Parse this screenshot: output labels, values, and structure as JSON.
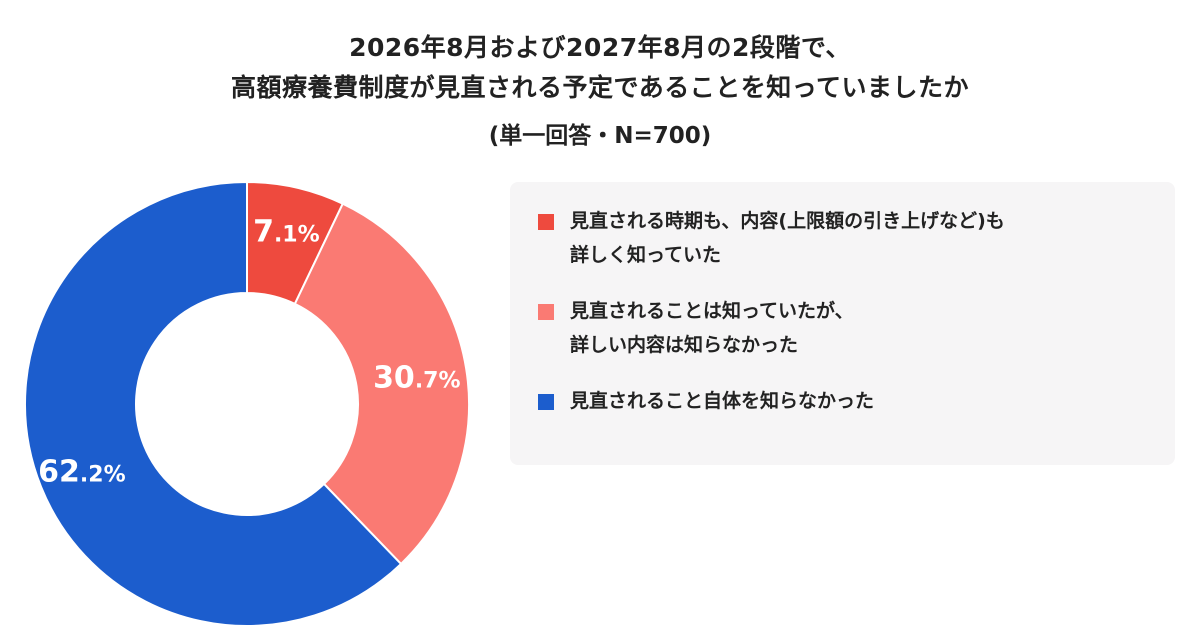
{
  "title": {
    "line1": "2026年8月および2027年8月の2段階で、",
    "line2": "高額療養費制度が見直される予定であることを知っていましたか",
    "subtitle": "(単一回答・N=700)"
  },
  "chart_data": {
    "type": "pie",
    "style": "donut",
    "title": "2026年8月および2027年8月の2段階で、高額療養費制度が見直される予定であることを知っていましたか",
    "subtitle": "(単一回答・N=700)",
    "unit": "%",
    "legend_position": "right",
    "slices": [
      {
        "label": "見直される時期も、内容(上限額の引き上げなど)も詳しく知っていた",
        "value": 7.1,
        "int": "7",
        "dec": ".1%",
        "color": "#ee4a3e"
      },
      {
        "label": "見直されることは知っていたが、詳しい内容は知らなかった",
        "value": 30.7,
        "int": "30",
        "dec": ".7%",
        "color": "#fa7a73"
      },
      {
        "label": "見直されること自体を知らなかった",
        "value": 62.2,
        "int": "62",
        "dec": ".2%",
        "color": "#1c5dcd"
      }
    ]
  },
  "legend": [
    {
      "line1": "見直される時期も、内容(上限額の引き上げなど)も",
      "line2": "詳しく知っていた",
      "color": "#ee4a3e"
    },
    {
      "line1": "見直されることは知っていたが、",
      "line2": "詳しい内容は知らなかった",
      "color": "#fa7a73"
    },
    {
      "line1": "見直されること自体を知らなかった",
      "line2": "",
      "color": "#1c5dcd"
    }
  ]
}
